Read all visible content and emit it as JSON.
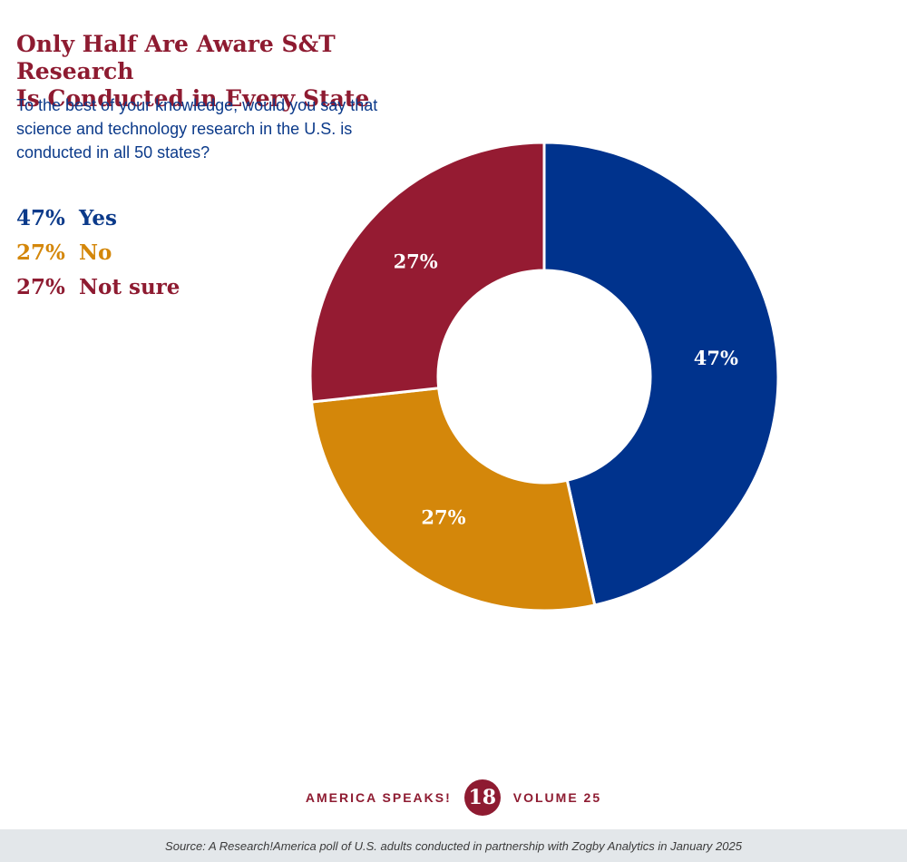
{
  "title_line1": "Only Half Are Aware S&T Research",
  "title_line2": "Is Conducted in Every State",
  "subtitle_line1": "To the best of your knowledge, would you say that",
  "subtitle_line2": "science and technology research in the U.S. is",
  "subtitle_line3": "conducted in all 50 states?",
  "legend": [
    {
      "pct": "47%",
      "label": "Yes",
      "color": "#0b3a8a"
    },
    {
      "pct": "27%",
      "label": "No",
      "color": "#d4870a"
    },
    {
      "pct": "27%",
      "label": "Not sure",
      "color": "#8e1b31"
    }
  ],
  "chart_data": {
    "type": "pie",
    "variant": "donut",
    "categories": [
      "Yes",
      "No",
      "Not sure"
    ],
    "values": [
      47,
      27,
      27
    ],
    "labels": [
      "47%",
      "27%",
      "27%"
    ],
    "colors": [
      "#00338d",
      "#d4870a",
      "#951b32"
    ],
    "start": "top, clockwise",
    "title": "Only Half Are Aware S&T Research Is Conducted in Every State"
  },
  "footer": {
    "left_text": "AMERICA SPEAKS!",
    "page_number": "18",
    "right_text": "VOLUME 25"
  },
  "source": "Source: A Research!America poll of U.S. adults conducted in partnership with Zogby Analytics in January 2025"
}
